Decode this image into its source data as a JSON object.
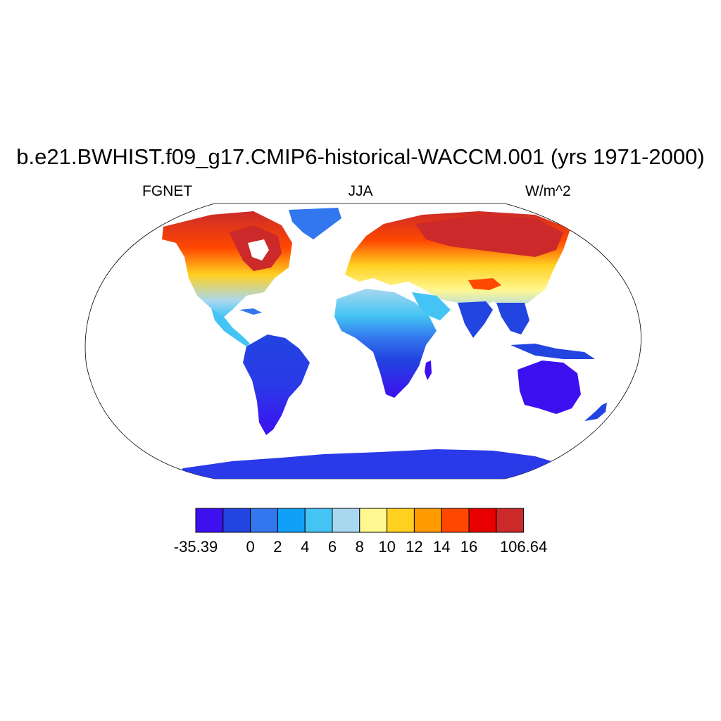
{
  "title": "b.e21.BWHIST.f09_g17.CMIP6-historical-WACCM.001 (yrs 1971-2000)",
  "left_label": "FGNET",
  "center_label": "JJA",
  "right_label": "W/m^2",
  "colorbar": {
    "colors": [
      "#3d10f0",
      "#2244e0",
      "#3377ee",
      "#11a0f8",
      "#44c4f4",
      "#a8d8f0",
      "#fff890",
      "#ffd020",
      "#ff9a00",
      "#ff4800",
      "#e80000",
      "#cc2a2a"
    ],
    "labels": [
      "-35.39",
      "0",
      "2",
      "4",
      "6",
      "8",
      "10",
      "12",
      "14",
      "16",
      "106.64"
    ]
  }
}
